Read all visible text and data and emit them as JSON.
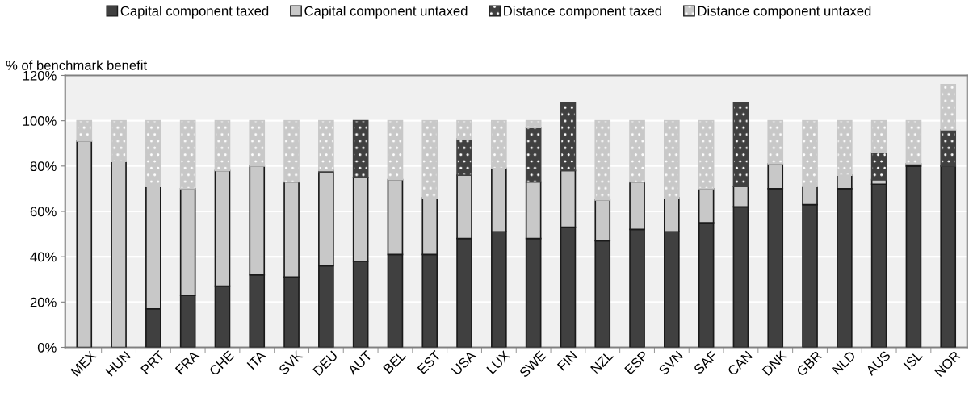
{
  "chart_data": {
    "type": "bar",
    "stacked": true,
    "ylabel": "% of benchmark benefit",
    "categories": [
      "MEX",
      "HUN",
      "PRT",
      "FRA",
      "CHE",
      "ITA",
      "SVK",
      "DEU",
      "AUT",
      "BEL",
      "EST",
      "USA",
      "LUX",
      "SWE",
      "FIN",
      "NZL",
      "ESP",
      "SVN",
      "SAF",
      "CAN",
      "DNK",
      "GBR",
      "NLD",
      "AUS",
      "ISL",
      "NOR"
    ],
    "series": [
      {
        "name": "Capital component taxed",
        "color": "#404040",
        "values": [
          0,
          0,
          17,
          23,
          27,
          32,
          31,
          36,
          38,
          41,
          41,
          48,
          51,
          48,
          53,
          47,
          52,
          51,
          55,
          62,
          70,
          63,
          70,
          72,
          80,
          80
        ]
      },
      {
        "name": "Capital component untaxed",
        "color": "#c8c8c8",
        "values": [
          91,
          82,
          54,
          47,
          51,
          48,
          42,
          41,
          37,
          33,
          25,
          28,
          28,
          25,
          25,
          18,
          21,
          15,
          15,
          9,
          11,
          8,
          6,
          2,
          1,
          0
        ]
      },
      {
        "name": "Distance component taxed",
        "color": "#404040",
        "values": [
          0,
          0,
          0,
          0,
          0,
          0,
          0,
          1,
          25,
          0,
          0,
          16,
          0,
          24,
          30,
          0,
          0,
          0,
          0,
          37,
          0,
          0,
          0,
          12,
          0,
          16
        ]
      },
      {
        "name": "Distance component untaxed",
        "color": "#c8c8c8",
        "values": [
          9,
          18,
          29,
          30,
          22,
          20,
          27,
          22,
          0,
          26,
          34,
          8,
          21,
          3,
          0,
          35,
          27,
          34,
          30,
          0,
          19,
          29,
          24,
          14,
          19,
          20
        ]
      }
    ],
    "ylim": [
      0,
      120
    ],
    "yticks": [
      {
        "value": 0,
        "label": "0%"
      },
      {
        "value": 20,
        "label": "20%"
      },
      {
        "value": 40,
        "label": "40%"
      },
      {
        "value": 60,
        "label": "60%"
      },
      {
        "value": 80,
        "label": "80%"
      },
      {
        "value": 100,
        "label": "100%"
      },
      {
        "value": 120,
        "label": "120%"
      }
    ],
    "grid": "y",
    "legend": "top"
  }
}
